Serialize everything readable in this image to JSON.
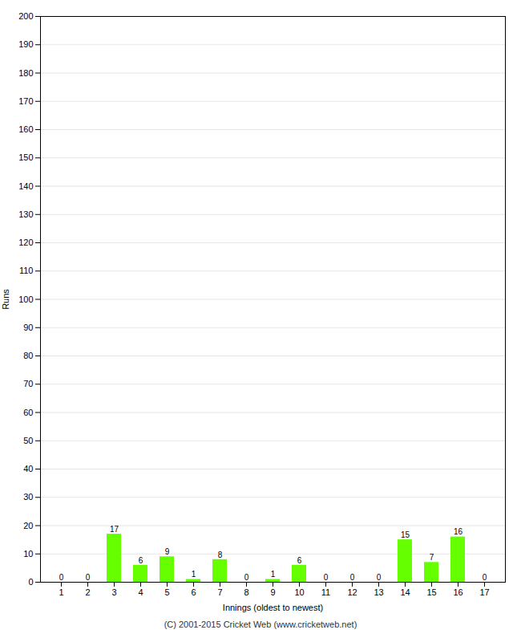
{
  "chart_data": {
    "type": "bar",
    "categories": [
      1,
      2,
      3,
      4,
      5,
      6,
      7,
      8,
      9,
      10,
      11,
      12,
      13,
      14,
      15,
      16,
      17
    ],
    "values": [
      0,
      0,
      17,
      6,
      9,
      1,
      8,
      0,
      1,
      6,
      0,
      0,
      0,
      15,
      7,
      16,
      0
    ],
    "color": "#66ff00",
    "xlabel": "Innings (oldest to newest)",
    "ylabel": "Runs",
    "ylim": [
      0,
      200
    ],
    "yticks": [
      0,
      10,
      20,
      30,
      40,
      50,
      60,
      70,
      80,
      90,
      100,
      110,
      120,
      130,
      140,
      150,
      160,
      170,
      180,
      190,
      200
    ],
    "grid": true,
    "data_labels": true,
    "footer": "(C) 2001-2015 Cricket Web (www.cricketweb.net)"
  }
}
